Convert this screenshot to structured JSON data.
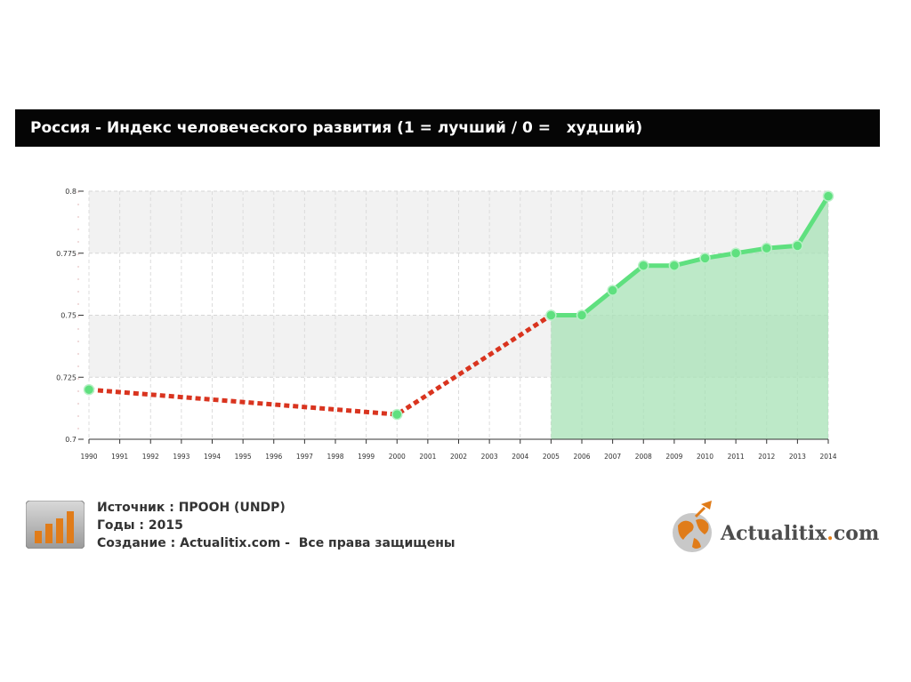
{
  "title": "Россия - Индекс человеческого развития (1 = лучший / 0 =   худший)",
  "colors": {
    "accent_green": "#5fe07f",
    "fill_green": "#a7e2b6",
    "dashed_red": "#d9341f",
    "title_bar": "#050505"
  },
  "chart_data": {
    "type": "line",
    "title": "Россия - Индекс человеческого развития (1 = лучший / 0 =   худший)",
    "xlabel": "",
    "ylabel": "",
    "ylim": [
      0.7,
      0.8
    ],
    "y_ticks": [
      "0.7",
      "0.725",
      "0.75",
      "0.775",
      "0.8"
    ],
    "x_ticks": [
      "1990",
      "1991",
      "1992",
      "1993",
      "1994",
      "1995",
      "1996",
      "1997",
      "1998",
      "1999",
      "2000",
      "2001",
      "2002",
      "2003",
      "2004",
      "2005",
      "2006",
      "2007",
      "2008",
      "2009",
      "2010",
      "2011",
      "2012",
      "2013",
      "2014"
    ],
    "grid": true,
    "series": [
      {
        "style": "dashed",
        "x": [
          1990,
          2000,
          2005
        ],
        "values": [
          0.72,
          0.71,
          0.75
        ]
      },
      {
        "style": "solid-area",
        "x": [
          2005,
          2006,
          2007,
          2008,
          2009,
          2010,
          2011,
          2012,
          2013,
          2014
        ],
        "values": [
          0.75,
          0.75,
          0.76,
          0.77,
          0.77,
          0.773,
          0.775,
          0.777,
          0.778,
          0.798
        ]
      }
    ]
  },
  "footer": {
    "source": "Источник : ПРООН (UNDP)",
    "years": "Годы : 2015",
    "created": "Создание : Actualitix.com -  Все права защищены",
    "icon": "bar-chart-icon"
  },
  "logo": {
    "name": "Actualitix",
    "dot": ".",
    "suffix": "com",
    "icon": "globe-icon"
  }
}
